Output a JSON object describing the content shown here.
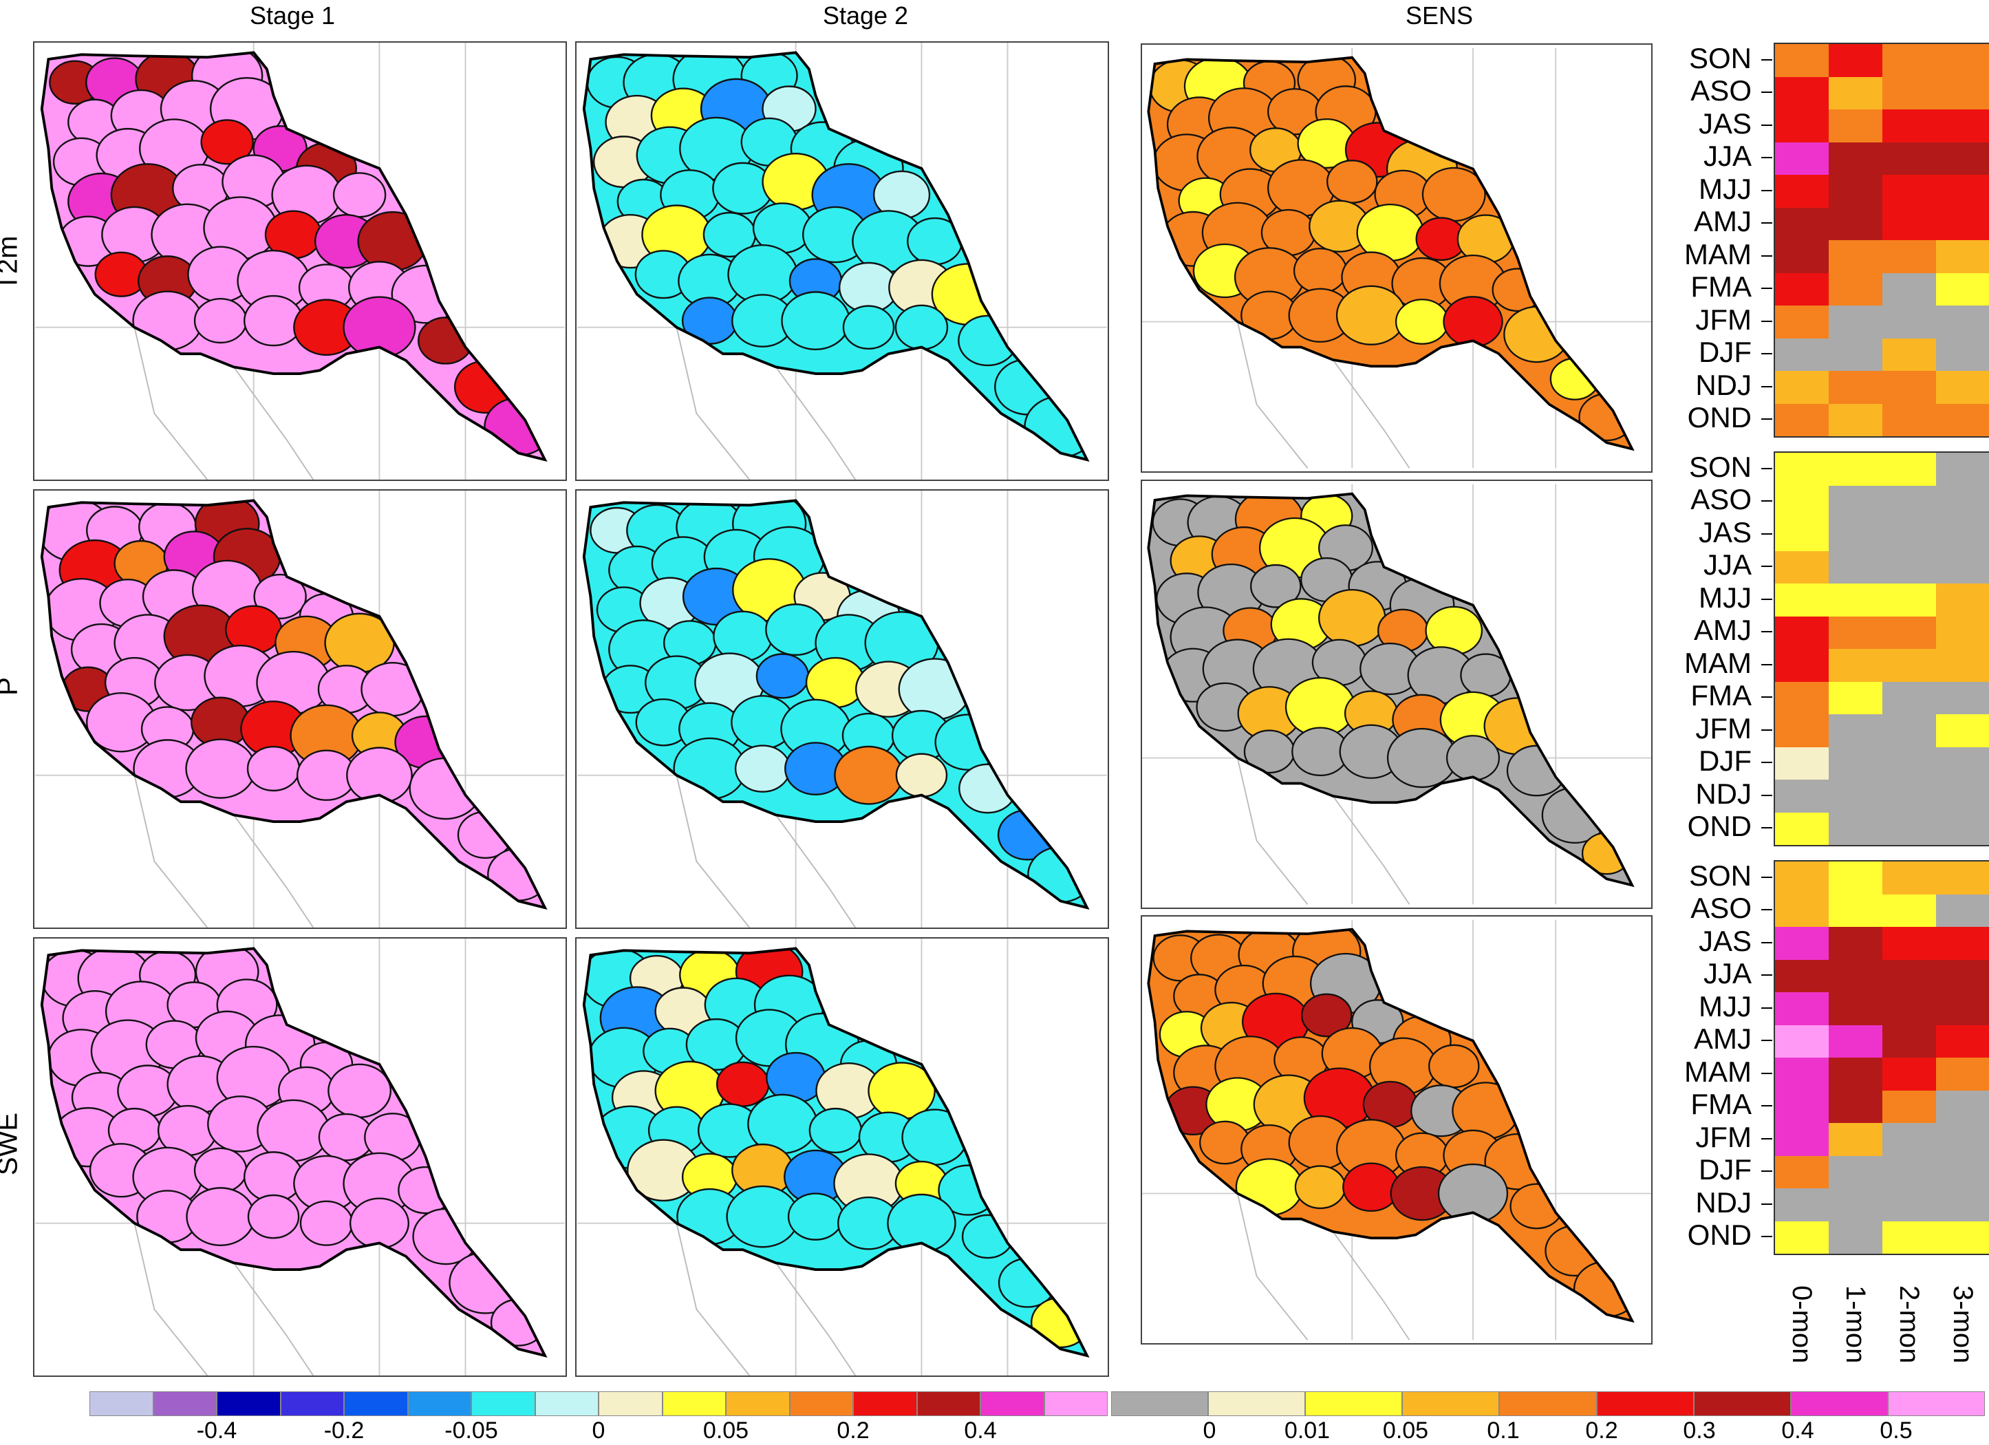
{
  "column_titles": [
    "Stage 1",
    "Stage 2",
    "SENS"
  ],
  "row_labels": [
    "T2m",
    "P",
    "SWE"
  ],
  "maps": [
    {
      "stage": "Stage 1",
      "variable": "T2m",
      "basin_fill": "#ff99f5",
      "highlight_colors": [
        "#b31919",
        "#ee1111",
        "#ee33cc"
      ]
    },
    {
      "stage": "Stage 2",
      "variable": "T2m",
      "basin_fill": "#33eeee",
      "highlight_colors": [
        "#ffff33",
        "#f5f0c8",
        "#c4f5f5",
        "#1e90ff"
      ]
    },
    {
      "stage": "SENS",
      "variable": "T2m",
      "basin_fill": "#f5821e",
      "highlight_colors": [
        "#ee1111",
        "#fbb624",
        "#ffff33"
      ]
    },
    {
      "stage": "Stage 1",
      "variable": "P",
      "basin_fill": "#ff99f5",
      "highlight_colors": [
        "#b31919",
        "#ee1111",
        "#f5821e",
        "#fbb624",
        "#ee33cc"
      ]
    },
    {
      "stage": "Stage 2",
      "variable": "P",
      "basin_fill": "#33eeee",
      "highlight_colors": [
        "#ffff33",
        "#f5f0c8",
        "#c4f5f5",
        "#1e90ff",
        "#f5821e"
      ]
    },
    {
      "stage": "SENS",
      "variable": "P",
      "basin_fill": "#aaaaaa",
      "highlight_colors": [
        "#ffff33",
        "#fbb624",
        "#f5821e"
      ]
    },
    {
      "stage": "Stage 1",
      "variable": "SWE",
      "basin_fill": "#ff99f5",
      "highlight_colors": []
    },
    {
      "stage": "Stage 2",
      "variable": "SWE",
      "basin_fill": "#33eeee",
      "highlight_colors": [
        "#ffff33",
        "#fbb624",
        "#ee1111",
        "#1e90ff",
        "#f5f0c8"
      ]
    },
    {
      "stage": "SENS",
      "variable": "SWE",
      "basin_fill": "#f5821e",
      "highlight_colors": [
        "#ee1111",
        "#b31919",
        "#aaaaaa",
        "#ffff33",
        "#fbb624"
      ]
    }
  ],
  "heatmap_data": {
    "type": "heatmap",
    "seasons": [
      "SON",
      "ASO",
      "JAS",
      "JJA",
      "MJJ",
      "AMJ",
      "MAM",
      "FMA",
      "JFM",
      "DJF",
      "NDJ",
      "OND"
    ],
    "leads": [
      "0-mon",
      "1-mon",
      "2-mon",
      "3-mon"
    ],
    "panels": [
      {
        "variable": "T2m",
        "cells": [
          [
            "#f5821e",
            "#ee1111",
            "#f5821e",
            "#f5821e"
          ],
          [
            "#ee1111",
            "#fbb624",
            "#f5821e",
            "#f5821e"
          ],
          [
            "#ee1111",
            "#f5821e",
            "#ee1111",
            "#ee1111"
          ],
          [
            "#ee33cc",
            "#b31919",
            "#b31919",
            "#b31919"
          ],
          [
            "#ee1111",
            "#b31919",
            "#ee1111",
            "#ee1111"
          ],
          [
            "#b31919",
            "#b31919",
            "#ee1111",
            "#ee1111"
          ],
          [
            "#b31919",
            "#f5821e",
            "#f5821e",
            "#fbb624"
          ],
          [
            "#ee1111",
            "#f5821e",
            "#aaaaaa",
            "#ffff33"
          ],
          [
            "#f5821e",
            "#aaaaaa",
            "#aaaaaa",
            "#aaaaaa"
          ],
          [
            "#aaaaaa",
            "#aaaaaa",
            "#fbb624",
            "#aaaaaa"
          ],
          [
            "#fbb624",
            "#f5821e",
            "#f5821e",
            "#fbb624"
          ],
          [
            "#f5821e",
            "#fbb624",
            "#f5821e",
            "#f5821e"
          ]
        ]
      },
      {
        "variable": "P",
        "cells": [
          [
            "#ffff33",
            "#ffff33",
            "#ffff33",
            "#aaaaaa"
          ],
          [
            "#ffff33",
            "#aaaaaa",
            "#aaaaaa",
            "#aaaaaa"
          ],
          [
            "#ffff33",
            "#aaaaaa",
            "#aaaaaa",
            "#aaaaaa"
          ],
          [
            "#fbb624",
            "#aaaaaa",
            "#aaaaaa",
            "#aaaaaa"
          ],
          [
            "#ffff33",
            "#ffff33",
            "#ffff33",
            "#fbb624"
          ],
          [
            "#ee1111",
            "#f5821e",
            "#f5821e",
            "#fbb624"
          ],
          [
            "#ee1111",
            "#fbb624",
            "#fbb624",
            "#fbb624"
          ],
          [
            "#f5821e",
            "#ffff33",
            "#aaaaaa",
            "#aaaaaa"
          ],
          [
            "#f5821e",
            "#aaaaaa",
            "#aaaaaa",
            "#ffff33"
          ],
          [
            "#f5f0c8",
            "#aaaaaa",
            "#aaaaaa",
            "#aaaaaa"
          ],
          [
            "#aaaaaa",
            "#aaaaaa",
            "#aaaaaa",
            "#aaaaaa"
          ],
          [
            "#ffff33",
            "#aaaaaa",
            "#aaaaaa",
            "#aaaaaa"
          ]
        ]
      },
      {
        "variable": "SWE",
        "cells": [
          [
            "#fbb624",
            "#ffff33",
            "#fbb624",
            "#fbb624"
          ],
          [
            "#fbb624",
            "#ffff33",
            "#ffff33",
            "#aaaaaa"
          ],
          [
            "#ee33cc",
            "#b31919",
            "#ee1111",
            "#ee1111"
          ],
          [
            "#b31919",
            "#b31919",
            "#b31919",
            "#b31919"
          ],
          [
            "#ee33cc",
            "#b31919",
            "#b31919",
            "#b31919"
          ],
          [
            "#ff99f5",
            "#ee33cc",
            "#b31919",
            "#ee1111"
          ],
          [
            "#ee33cc",
            "#b31919",
            "#ee1111",
            "#f5821e"
          ],
          [
            "#ee33cc",
            "#b31919",
            "#f5821e",
            "#aaaaaa"
          ],
          [
            "#ee33cc",
            "#fbb624",
            "#aaaaaa",
            "#aaaaaa"
          ],
          [
            "#f5821e",
            "#aaaaaa",
            "#aaaaaa",
            "#aaaaaa"
          ],
          [
            "#aaaaaa",
            "#aaaaaa",
            "#aaaaaa",
            "#aaaaaa"
          ],
          [
            "#ffff33",
            "#aaaaaa",
            "#ffff33",
            "#ffff33"
          ]
        ]
      }
    ]
  },
  "colorbar_left": {
    "colors": [
      "#c4c6e8",
      "#a062c8",
      "#0000b4",
      "#3a2ee0",
      "#0a5af0",
      "#1e96f0",
      "#33eeee",
      "#c4f5f5",
      "#f5f0c8",
      "#ffff33",
      "#fbb624",
      "#f5821e",
      "#ee1111",
      "#b31919",
      "#ee33cc",
      "#ff99f5"
    ],
    "tick_labels": [
      "-0.4",
      "-0.2",
      "-0.05",
      "0",
      "0.05",
      "0.2",
      "0.4"
    ]
  },
  "colorbar_right": {
    "colors": [
      "#aaaaaa",
      "#f5f0c8",
      "#ffff33",
      "#fbb624",
      "#f5821e",
      "#ee1111",
      "#b31919",
      "#ee33cc",
      "#ff99f5"
    ],
    "tick_labels": [
      "0",
      "0.01",
      "0.05",
      "0.1",
      "0.2",
      "0.3",
      "0.4",
      "0.5"
    ]
  }
}
